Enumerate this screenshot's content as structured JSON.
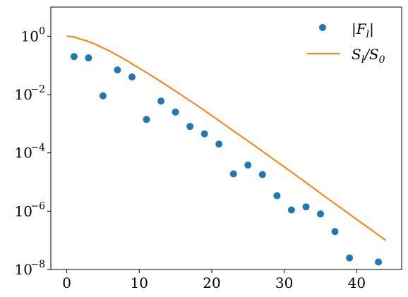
{
  "chart_data": {
    "type": "scatter",
    "title": "",
    "xlabel": "",
    "ylabel": "",
    "xlim": [
      -2.2,
      46.2
    ],
    "ylim_log10": [
      -8,
      1
    ],
    "yscale": "log",
    "grid": false,
    "legend_position": "upper-right",
    "x_ticks": [
      0,
      10,
      20,
      30,
      40
    ],
    "x_tick_labels": [
      "0",
      "10",
      "20",
      "30",
      "40"
    ],
    "y_ticks_log10": [
      0,
      -2,
      -4,
      -6,
      -8
    ],
    "y_tick_labels": [
      "0",
      "−2",
      "−4",
      "−6",
      "−8"
    ],
    "y_tick_base": "10",
    "series": [
      {
        "name": "|F_l|",
        "legend_label": "|F",
        "legend_sub": "l",
        "legend_suffix": "|",
        "kind": "scatter",
        "color": "#1f77b4",
        "x": [
          1,
          3,
          5,
          7,
          9,
          11,
          13,
          15,
          17,
          19,
          21,
          23,
          25,
          27,
          29,
          31,
          33,
          35,
          37,
          39,
          43
        ],
        "y": [
          0.2,
          0.18,
          0.009,
          0.07,
          0.04,
          0.0014,
          0.006,
          0.0025,
          0.0008,
          0.00045,
          0.0002,
          1.9e-05,
          3.8e-05,
          1.8e-05,
          3.4e-06,
          1.1e-06,
          1.4e-06,
          8e-07,
          2e-07,
          2.5e-08,
          1.8e-08
        ]
      },
      {
        "name": "S_l/S_0",
        "legend_label": "S",
        "legend_sub": "l",
        "legend_mid": "/S",
        "legend_sub2": "0",
        "kind": "line",
        "color": "#ff7f0e",
        "x": [
          0,
          1,
          2,
          3,
          4,
          5,
          6,
          8,
          10,
          12,
          14,
          16,
          18,
          20,
          22,
          24,
          26,
          28,
          30,
          32,
          34,
          36,
          38,
          40,
          42,
          44
        ],
        "y": [
          1.0,
          0.94,
          0.78,
          0.66,
          0.52,
          0.4,
          0.3,
          0.16,
          0.08,
          0.04,
          0.019,
          0.009,
          0.0042,
          0.0019,
          0.00085,
          0.00038,
          0.00017,
          7.5e-05,
          3.3e-05,
          1.45e-05,
          6.3e-06,
          2.7e-06,
          1.2e-06,
          5.2e-07,
          2.3e-07,
          1e-07
        ]
      }
    ]
  }
}
